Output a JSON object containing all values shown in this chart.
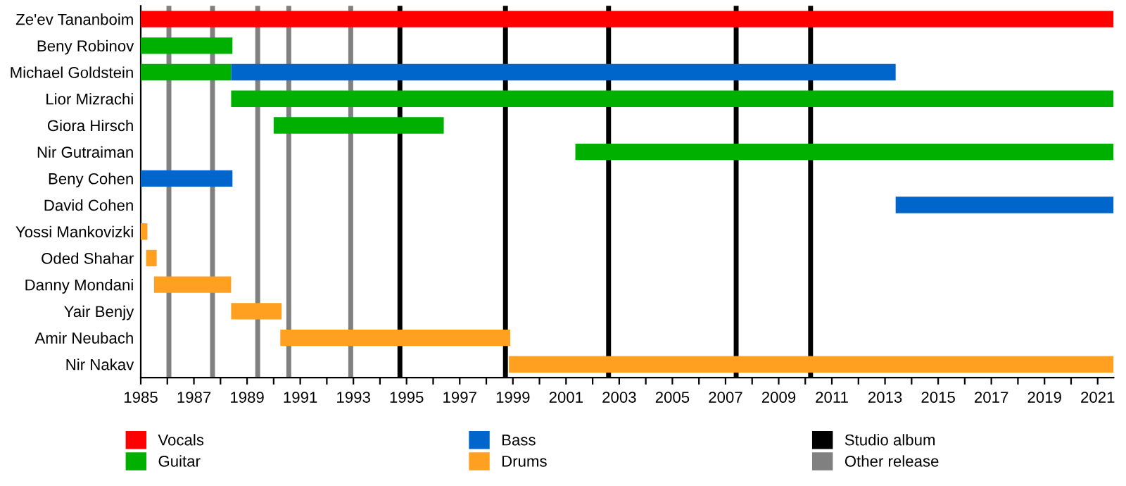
{
  "chart_data": {
    "type": "bar",
    "orientation": "horizontal",
    "categories": [
      "Ze'ev Tananboim",
      "Beny Robinov",
      "Michael Goldstein",
      "Lior Mizrachi",
      "Giora Hirsch",
      "Nir Gutraiman",
      "Beny Cohen",
      "David Cohen",
      "Yossi Mankovizki",
      "Oded Shahar",
      "Danny Mondani",
      "Yair Benjy",
      "Amir Neubach",
      "Nir Nakav"
    ],
    "series": [
      {
        "name": "Vocals",
        "color": "#ff0000",
        "base": [
          1985,
          null,
          null,
          null,
          null,
          null,
          null,
          null,
          null,
          null,
          null,
          null,
          null,
          null
        ],
        "values": [
          36.6,
          null,
          null,
          null,
          null,
          null,
          null,
          null,
          null,
          null,
          null,
          null,
          null,
          null
        ]
      },
      {
        "name": "Guitar",
        "color": "#00b000",
        "base": [
          null,
          1985,
          1985,
          1988.4,
          1990.0,
          2001.35,
          null,
          null,
          null,
          null,
          null,
          null,
          null,
          null
        ],
        "values": [
          null,
          3.45,
          3.4,
          33.2,
          6.4,
          20.25,
          null,
          null,
          null,
          null,
          null,
          null,
          null,
          null
        ]
      },
      {
        "name": "Bass",
        "color": "#0066cc",
        "base": [
          null,
          null,
          1988.4,
          null,
          null,
          null,
          1985,
          2013.4,
          null,
          null,
          null,
          null,
          null,
          null
        ],
        "values": [
          null,
          null,
          25.0,
          null,
          null,
          null,
          3.45,
          8.2,
          null,
          null,
          null,
          null,
          null,
          null
        ]
      },
      {
        "name": "Drums",
        "color": "#ffa020",
        "base": [
          null,
          null,
          null,
          null,
          null,
          null,
          null,
          null,
          1985,
          1985.2,
          1985.5,
          1988.4,
          1990.25,
          1998.85
        ],
        "values": [
          null,
          null,
          null,
          null,
          null,
          null,
          null,
          null,
          0.25,
          0.4,
          2.9,
          1.9,
          8.65,
          22.75
        ]
      }
    ],
    "ref_lines": [
      {
        "axis": "x",
        "value": 1994.75,
        "label": "Studio album",
        "color": "#000000"
      },
      {
        "axis": "x",
        "value": 1998.72,
        "color": "#000000"
      },
      {
        "axis": "x",
        "value": 2002.6,
        "color": "#000000"
      },
      {
        "axis": "x",
        "value": 2007.4,
        "color": "#000000"
      },
      {
        "axis": "x",
        "value": 2010.2,
        "color": "#000000"
      },
      {
        "axis": "x",
        "value": 1986.06,
        "label": "Other release",
        "color": "#808080"
      },
      {
        "axis": "x",
        "value": 1987.7,
        "color": "#808080"
      },
      {
        "axis": "x",
        "value": 1989.4,
        "color": "#808080"
      },
      {
        "axis": "x",
        "value": 1990.57,
        "color": "#808080"
      },
      {
        "axis": "x",
        "value": 1992.9,
        "color": "#808080"
      }
    ],
    "xlim": [
      1985,
      2021.6
    ],
    "xticks": [
      1985,
      {
        "value": 1986,
        "label": null
      },
      1987,
      {
        "value": 1988,
        "label": null
      },
      1989,
      {
        "value": 1990,
        "label": null
      },
      1991,
      {
        "value": 1992,
        "label": null
      },
      1993,
      {
        "value": 1994,
        "label": null
      },
      1995,
      {
        "value": 1996,
        "label": null
      },
      1997,
      {
        "value": 1998,
        "label": null
      },
      1999,
      {
        "value": 2000,
        "label": null
      },
      2001,
      {
        "value": 2002,
        "label": null
      },
      2003,
      {
        "value": 2004,
        "label": null
      },
      2005,
      {
        "value": 2006,
        "label": null
      },
      2007,
      {
        "value": 2008,
        "label": null
      },
      2009,
      {
        "value": 2010,
        "label": null
      },
      2011,
      {
        "value": 2012,
        "label": null
      },
      2013,
      {
        "value": 2014,
        "label": null
      },
      2015,
      {
        "value": 2016,
        "label": null
      },
      2017,
      {
        "value": 2018,
        "label": null
      },
      2019,
      {
        "value": 2020,
        "label": null
      },
      2021
    ],
    "grid": false,
    "legend": "bottom"
  }
}
